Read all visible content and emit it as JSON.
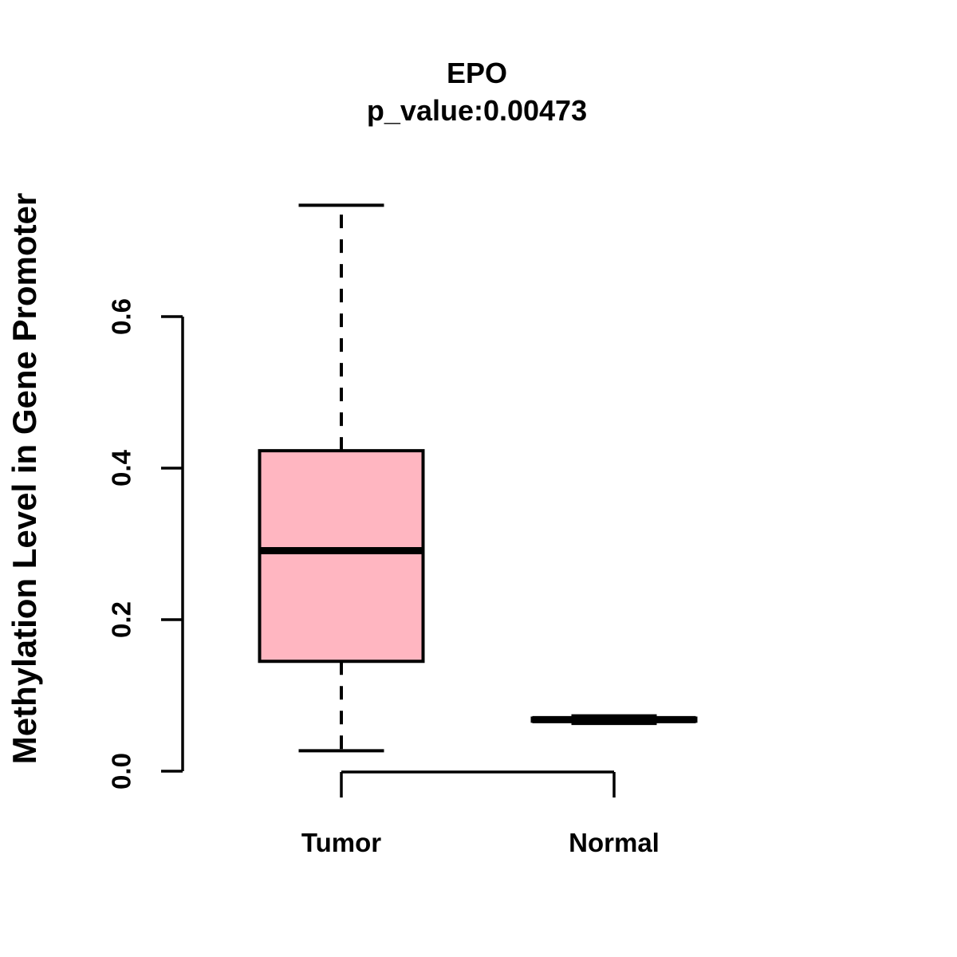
{
  "chart_data": {
    "type": "boxplot",
    "title": "EPO",
    "subtitle": "p_value:0.00473",
    "p_value": 0.00473,
    "gene": "EPO",
    "ylabel": "Methylation Level in Gene Promoter",
    "xlabel": "",
    "categories": [
      "Tumor",
      "Normal"
    ],
    "y_ticks": [
      0.0,
      0.2,
      0.4,
      0.6
    ],
    "ylim": [
      0.0,
      0.75
    ],
    "grid": false,
    "legend": "none",
    "series": [
      {
        "name": "Tumor",
        "min": 0.027,
        "q1": 0.145,
        "median": 0.291,
        "q3": 0.423,
        "max": 0.747,
        "outliers": []
      },
      {
        "name": "Normal",
        "min": 0.063,
        "q1": 0.066,
        "median": 0.068,
        "q3": 0.07,
        "max": 0.073,
        "outliers": []
      }
    ],
    "colors": {
      "box_fill": "#FFB6C1",
      "stroke": "#000000",
      "background": "#FFFFFF"
    }
  }
}
